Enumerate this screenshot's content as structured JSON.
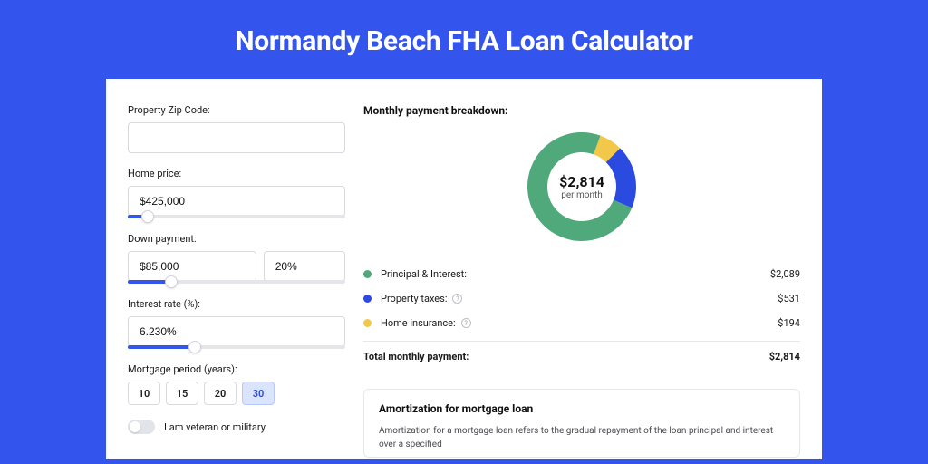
{
  "page": {
    "title": "Normandy Beach FHA Loan Calculator",
    "background_color": "#3355ee",
    "panel_background": "#ffffff"
  },
  "form": {
    "zip": {
      "label": "Property Zip Code:",
      "value": ""
    },
    "home_price": {
      "label": "Home price:",
      "value": "$425,000",
      "slider_pct": 9
    },
    "down_payment": {
      "label": "Down payment:",
      "value": "$85,000",
      "pct_value": "20%",
      "slider_pct": 20
    },
    "interest": {
      "label": "Interest rate (%):",
      "value": "6.230%",
      "slider_pct": 31
    },
    "period": {
      "label": "Mortgage period (years):",
      "options": [
        "10",
        "15",
        "20",
        "30"
      ],
      "selected": "30"
    },
    "veteran": {
      "label": "I am veteran or military",
      "checked": false
    }
  },
  "breakdown": {
    "title": "Monthly payment breakdown:",
    "donut": {
      "amount": "$2,814",
      "period_label": "per month",
      "segments": [
        {
          "name": "principal_interest",
          "color": "#4fa97a",
          "pct": 74.2
        },
        {
          "name": "property_taxes",
          "color": "#2b4ae0",
          "pct": 18.9
        },
        {
          "name": "home_insurance",
          "color": "#f2c84b",
          "pct": 6.9
        }
      ]
    },
    "rows": [
      {
        "label": "Principal & Interest:",
        "value": "$2,089",
        "dot_color": "#4fa97a",
        "info": false
      },
      {
        "label": "Property taxes:",
        "value": "$531",
        "dot_color": "#2b4ae0",
        "info": true
      },
      {
        "label": "Home insurance:",
        "value": "$194",
        "dot_color": "#f2c84b",
        "info": true
      }
    ],
    "total": {
      "label": "Total monthly payment:",
      "value": "$2,814"
    }
  },
  "amort": {
    "title": "Amortization for mortgage loan",
    "text": "Amortization for a mortgage loan refers to the gradual repayment of the loan principal and interest over a specified"
  },
  "colors": {
    "accent": "#3355ee",
    "border": "#d7d9dd",
    "text": "#1a1a1a",
    "muted_text": "#4a4c52"
  }
}
